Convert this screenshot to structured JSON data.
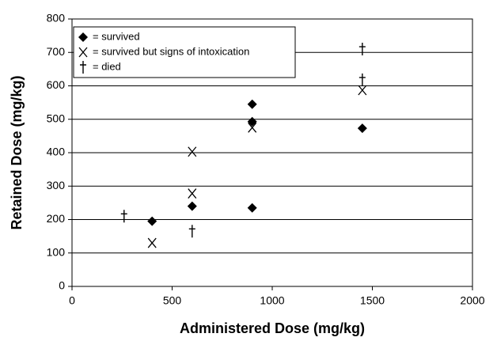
{
  "chart_data": {
    "type": "scatter",
    "xlabel": "Administered Dose (mg/kg)",
    "ylabel": "Retained Dose (mg/kg)",
    "xlim": [
      0,
      2000
    ],
    "xticks": [
      0,
      500,
      1000,
      1500,
      2000
    ],
    "ylim": [
      0,
      800
    ],
    "yticks": [
      0,
      100,
      200,
      300,
      400,
      500,
      600,
      700,
      800
    ],
    "grid": true,
    "legend": "upper left",
    "series": [
      {
        "name": "= survived",
        "marker": "diamond",
        "color": "#000000",
        "x": [
          400,
          600,
          900,
          900,
          900,
          1450
        ],
        "values": [
          195,
          240,
          545,
          493,
          235,
          473
        ]
      },
      {
        "name": "= survived but signs of intoxication",
        "marker": "x",
        "color": "#000000",
        "x": [
          400,
          600,
          600,
          900,
          1450
        ],
        "values": [
          130,
          403,
          278,
          475,
          587
        ]
      },
      {
        "name": "= died",
        "marker": "dagger",
        "color": "#000000",
        "x": [
          260,
          600,
          1450,
          1450
        ],
        "values": [
          210,
          165,
          710,
          618
        ]
      }
    ]
  }
}
